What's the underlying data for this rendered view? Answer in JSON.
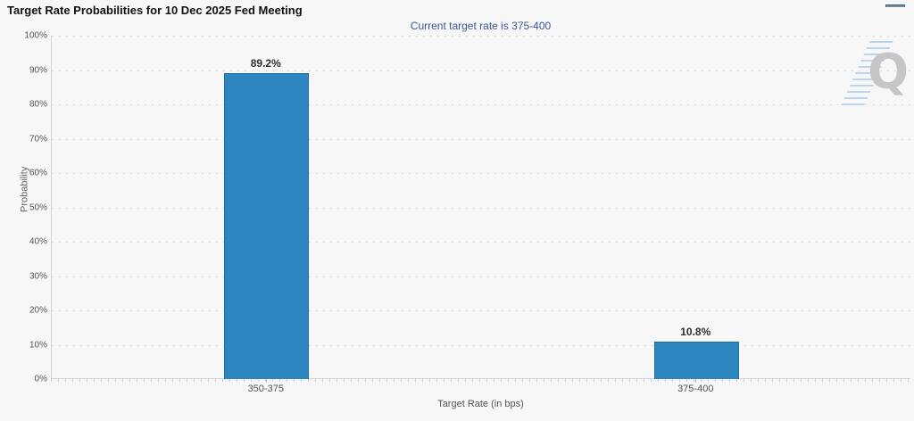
{
  "header": {
    "title": "Target Rate Probabilities for 10 Dec 2025 Fed Meeting",
    "menu_icon": "hamburger-menu-icon"
  },
  "subtitle": "Current target rate is 375-400",
  "watermark": {
    "letter": "Q"
  },
  "chart_data": {
    "type": "bar",
    "title": "Target Rate Probabilities for 10 Dec 2025 Fed Meeting",
    "subtitle": "Current target rate is 375-400",
    "categories": [
      "350-375",
      "375-400"
    ],
    "values": [
      89.2,
      10.8
    ],
    "data_labels": [
      "89.2%",
      "10.8%"
    ],
    "xlabel": "Target Rate (in bps)",
    "ylabel": "Probability",
    "ylim": [
      0,
      100
    ],
    "ytick_step": 10,
    "ytick_labels": [
      "0%",
      "10%",
      "20%",
      "30%",
      "40%",
      "50%",
      "60%",
      "70%",
      "80%",
      "90%",
      "100%"
    ],
    "grid": "horizontal-dotted",
    "legend": "none",
    "bar_color": "#2e86c0",
    "bar_border_color": "#1f6da3",
    "subtitle_color": "#3a5795",
    "background_color": "#f7f7f8"
  }
}
